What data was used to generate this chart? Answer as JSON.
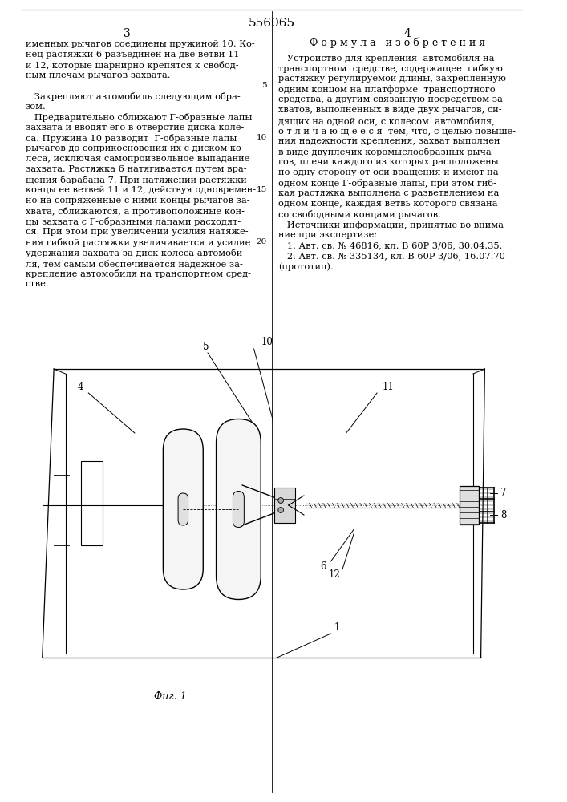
{
  "patent_number": "556065",
  "page_left": "3",
  "page_right": "4",
  "col_left_text": [
    "именных рычагов соединены пружиной 10. Ко-",
    "нец растяжки 6 разъединен на две ветви 11",
    "и 12, которые шарнирно крепятся к свобод-",
    "ным плечам рычагов захвата.",
    "",
    "   Закрепляют автомобиль следующим обра-",
    "зом.",
    "   Предварительно сближают Г-образные лапы",
    "захвата и вводят его в отверстие диска коле-",
    "са. Пружина 10 разводит  Г-образные лапы",
    "рычагов до соприкосновения их с диском ко-",
    "леса, исключая самопроизвольное выпадание",
    "захвата. Растяжка 6 натягивается путем вра-",
    "щения барабана 7. При натяжении растяжки",
    "концы ее ветвей 11 и 12, действуя одновремен-",
    "но на сопряженные с ними концы рычагов за-",
    "хвата, сближаются, а противоположные кон-",
    "цы захвата с Г-образными лапами расходят-",
    "ся. При этом при увеличении усилия натяже-",
    "ния гибкой растяжки увеличивается и усилие",
    "удержания захвата за диск колеса автомоби-",
    "ля, тем самым обеспечивается надежное за-",
    "крепление автомобиля на транспортном сред-",
    "стве."
  ],
  "col_right_heading": "Ф о р м у л а   и з о б р е т е н и я",
  "col_right_text": [
    "   Устройство для крепления  автомобиля на",
    "транспортном  средстве, содержащее  гибкую",
    "растяжку регулируемой длины, закрепленную",
    "одним концом на платформе  транспортного",
    "средства, а другим связанную посредством за-",
    "хватов, выполненных в виде двух рычагов, си-",
    "дящих на одной оси, с колесом  автомобиля,",
    "о т л и ч а ю щ е е с я  тем, что, с целью повыше-",
    "ния надежности крепления, захват выполнен",
    "в виде двуплечих коромыслообразных рыча-",
    "гов, плечи каждого из которых расположены",
    "по одну сторону от оси вращения и имеют на",
    "одном конце Г-образные лапы, при этом гиб-",
    "кая растяжка выполнена с разветвлением на",
    "одном конце, каждая ветвь которого связана",
    "со свободными концами рычагов.",
    "   Источники информации, принятые во внима-",
    "ние при экспертизе:",
    "   1. Авт. св. № 46816, кл. В 60Р 3/06, 30.04.35.",
    "   2. Авт. св. № 335134, кл. В 60Р 3/06, 16.07.70",
    "(прототип)."
  ],
  "line_numbers": {
    "5": 5,
    "10": 10,
    "15": 15,
    "20": 20
  },
  "fig_caption": "Фиг. 1",
  "background_color": "#ffffff",
  "text_color": "#000000",
  "font_size_body": 8.2,
  "font_size_heading": 9.0,
  "font_size_page_num": 10,
  "font_size_patent": 11
}
